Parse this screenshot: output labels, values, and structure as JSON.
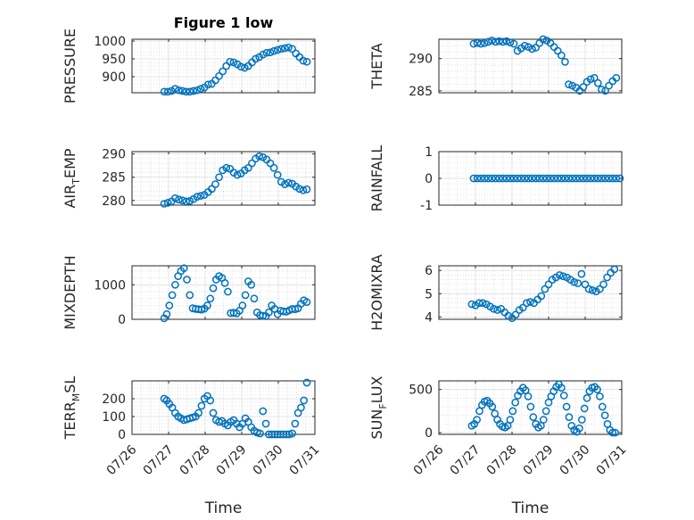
{
  "chart_data": [
    {
      "type": "scatter",
      "title": "Figure 1 low",
      "ylabel": "PRESSURE",
      "xlabel": "",
      "ylim": [
        855,
        1005
      ],
      "yticks": [
        900,
        950,
        1000
      ],
      "x_tick_labels": [],
      "grid": true,
      "marker_color": "#0072bd",
      "series": [
        {
          "x": [
            0.88,
            0.98,
            1.08,
            1.18,
            1.28,
            1.38,
            1.48,
            1.58,
            1.68,
            1.78,
            1.88,
            1.98,
            2.08,
            2.18,
            2.28,
            2.38,
            2.48,
            2.58,
            2.68,
            2.78,
            2.88,
            2.98,
            3.08,
            3.18,
            3.28,
            3.38,
            3.48,
            3.58,
            3.68,
            3.78,
            3.88,
            3.98,
            4.08,
            4.18,
            4.28,
            4.38,
            4.48,
            4.58,
            4.68,
            4.78
          ],
          "y": [
            858,
            858,
            860,
            866,
            862,
            860,
            858,
            858,
            860,
            862,
            866,
            870,
            878,
            880,
            890,
            902,
            915,
            930,
            942,
            940,
            935,
            928,
            925,
            930,
            940,
            950,
            955,
            962,
            967,
            968,
            972,
            975,
            978,
            980,
            982,
            978,
            965,
            955,
            945,
            942
          ]
        }
      ]
    },
    {
      "type": "scatter",
      "title": "",
      "ylabel": "THETA",
      "xlabel": "",
      "ylim": [
        284.7,
        293
      ],
      "yticks": [
        285,
        290
      ],
      "x_tick_labels": [],
      "grid": true,
      "marker_color": "#0072bd",
      "series": [
        {
          "x": [
            0.95,
            1.05,
            1.15,
            1.25,
            1.35,
            1.45,
            1.55,
            1.65,
            1.75,
            1.85,
            1.95,
            2.05,
            2.15,
            2.25,
            2.35,
            2.45,
            2.55,
            2.65,
            2.75,
            2.85,
            2.95,
            3.05,
            3.15,
            3.25,
            3.35,
            3.45,
            3.55,
            3.65,
            3.75,
            3.85,
            3.95,
            4.05,
            4.15,
            4.25,
            4.35,
            4.45,
            4.55,
            4.65,
            4.75,
            4.85
          ],
          "y": [
            292.3,
            292.4,
            292.3,
            292.4,
            292.6,
            292.8,
            292.6,
            292.7,
            292.6,
            292.7,
            292.5,
            292.3,
            291.2,
            291.6,
            292.0,
            291.8,
            291.5,
            291.7,
            292.4,
            293.0,
            292.8,
            292.4,
            291.8,
            291.2,
            290.5,
            289.5,
            286.0,
            285.8,
            285.5,
            285.0,
            285.6,
            286.4,
            286.8,
            287.0,
            286.2,
            285.2,
            285.0,
            285.8,
            286.5,
            287.0
          ]
        }
      ]
    },
    {
      "type": "scatter",
      "title": "",
      "ylabel": "AIR_TEMP",
      "xlabel": "",
      "ylim": [
        279,
        290.5
      ],
      "yticks": [
        280,
        285,
        290
      ],
      "x_tick_labels": [],
      "grid": true,
      "marker_color": "#0072bd",
      "series": [
        {
          "x": [
            0.88,
            0.98,
            1.08,
            1.18,
            1.28,
            1.38,
            1.48,
            1.58,
            1.68,
            1.78,
            1.88,
            1.98,
            2.08,
            2.18,
            2.28,
            2.38,
            2.48,
            2.58,
            2.68,
            2.78,
            2.88,
            2.98,
            3.08,
            3.18,
            3.28,
            3.38,
            3.48,
            3.58,
            3.68,
            3.78,
            3.88,
            3.98,
            4.08,
            4.18,
            4.28,
            4.38,
            4.48,
            4.58,
            4.68,
            4.78
          ],
          "y": [
            279.3,
            279.5,
            279.8,
            280.5,
            280.2,
            280.0,
            279.8,
            279.9,
            280.3,
            280.8,
            281.0,
            281.2,
            281.8,
            282.5,
            283.5,
            285.0,
            286.5,
            287.0,
            286.8,
            286.0,
            285.5,
            285.8,
            286.5,
            287.0,
            288.0,
            289.0,
            289.5,
            289.3,
            288.8,
            288.0,
            287.0,
            285.5,
            284.0,
            283.5,
            283.8,
            283.6,
            283.0,
            282.5,
            282.2,
            282.4
          ]
        }
      ]
    },
    {
      "type": "scatter",
      "title": "",
      "ylabel": "RAINFALL",
      "xlabel": "",
      "ylim": [
        -1,
        1
      ],
      "yticks": [
        -1,
        0,
        1
      ],
      "x_tick_labels": [],
      "grid": true,
      "marker_color": "#0072bd",
      "series": [
        {
          "x": [
            0.95,
            1.05,
            1.15,
            1.25,
            1.35,
            1.45,
            1.55,
            1.65,
            1.75,
            1.85,
            1.95,
            2.05,
            2.15,
            2.25,
            2.35,
            2.45,
            2.55,
            2.65,
            2.75,
            2.85,
            2.95,
            3.05,
            3.15,
            3.25,
            3.35,
            3.45,
            3.55,
            3.65,
            3.75,
            3.85,
            3.95,
            4.05,
            4.15,
            4.25,
            4.35,
            4.45,
            4.55,
            4.65,
            4.75,
            4.85,
            4.95
          ],
          "y": [
            0,
            0,
            0,
            0,
            0,
            0,
            0,
            0,
            0,
            0,
            0,
            0,
            0,
            0,
            0,
            0,
            0,
            0,
            0,
            0,
            0,
            0,
            0,
            0,
            0,
            0,
            0,
            0,
            0,
            0,
            0,
            0,
            0,
            0,
            0,
            0,
            0,
            0,
            0,
            0,
            0
          ]
        }
      ]
    },
    {
      "type": "scatter",
      "title": "",
      "ylabel": "MIXDEPTH",
      "xlabel": "",
      "ylim": [
        0,
        1550
      ],
      "yticks": [
        0,
        1000
      ],
      "x_tick_labels": [],
      "grid": true,
      "marker_color": "#0072bd",
      "series": [
        {
          "x": [
            0.88,
            0.95,
            1.02,
            1.1,
            1.18,
            1.26,
            1.34,
            1.42,
            1.5,
            1.58,
            1.66,
            1.74,
            1.82,
            1.9,
            1.98,
            2.06,
            2.14,
            2.22,
            2.3,
            2.38,
            2.46,
            2.54,
            2.62,
            2.7,
            2.78,
            2.86,
            2.94,
            3.02,
            3.1,
            3.18,
            3.26,
            3.34,
            3.42,
            3.5,
            3.58,
            3.66,
            3.74,
            3.82,
            3.9,
            3.98,
            4.06,
            4.14,
            4.22,
            4.3,
            4.38,
            4.46,
            4.54,
            4.62,
            4.7,
            4.78
          ],
          "y": [
            30,
            150,
            400,
            700,
            1000,
            1250,
            1400,
            1480,
            1150,
            700,
            320,
            300,
            290,
            280,
            310,
            400,
            600,
            900,
            1150,
            1250,
            1200,
            1050,
            800,
            180,
            190,
            170,
            250,
            400,
            700,
            1100,
            1000,
            600,
            200,
            120,
            100,
            90,
            200,
            400,
            300,
            150,
            250,
            230,
            220,
            260,
            300,
            290,
            320,
            450,
            550,
            500
          ]
        }
      ]
    },
    {
      "type": "scatter",
      "title": "",
      "ylabel": "H2OMIXRA",
      "xlabel": "",
      "ylim": [
        3.9,
        6.2
      ],
      "yticks": [
        4,
        5,
        6
      ],
      "x_tick_labels": [],
      "grid": true,
      "marker_color": "#0072bd",
      "series": [
        {
          "x": [
            0.9,
            1.0,
            1.1,
            1.2,
            1.3,
            1.4,
            1.5,
            1.6,
            1.7,
            1.8,
            1.9,
            2.0,
            2.1,
            2.2,
            2.3,
            2.4,
            2.5,
            2.6,
            2.7,
            2.8,
            2.9,
            3.0,
            3.1,
            3.2,
            3.3,
            3.4,
            3.5,
            3.6,
            3.7,
            3.8,
            3.9,
            4.0,
            4.1,
            4.2,
            4.3,
            4.4,
            4.5,
            4.6,
            4.7,
            4.8
          ],
          "y": [
            4.55,
            4.5,
            4.6,
            4.6,
            4.55,
            4.45,
            4.35,
            4.3,
            4.35,
            4.2,
            4.05,
            3.95,
            4.1,
            4.3,
            4.4,
            4.6,
            4.65,
            4.6,
            4.75,
            4.9,
            5.2,
            5.4,
            5.6,
            5.7,
            5.8,
            5.75,
            5.7,
            5.6,
            5.5,
            5.45,
            5.85,
            5.4,
            5.2,
            5.15,
            5.1,
            5.2,
            5.4,
            5.7,
            5.9,
            6.05
          ]
        }
      ]
    },
    {
      "type": "scatter",
      "title": "",
      "ylabel": "TERR_MSL",
      "xlabel": "Time",
      "ylim": [
        0,
        300
      ],
      "yticks": [
        0,
        100,
        200
      ],
      "x_tick_labels": [
        "07/26",
        "07/27",
        "07/28",
        "07/29",
        "07/30",
        "07/31"
      ],
      "grid": true,
      "marker_color": "#0072bd",
      "series": [
        {
          "x": [
            0.88,
            0.95,
            1.02,
            1.1,
            1.18,
            1.26,
            1.34,
            1.42,
            1.5,
            1.58,
            1.66,
            1.74,
            1.82,
            1.9,
            1.98,
            2.06,
            2.14,
            2.22,
            2.3,
            2.38,
            2.46,
            2.54,
            2.62,
            2.7,
            2.78,
            2.86,
            2.94,
            3.02,
            3.1,
            3.18,
            3.26,
            3.34,
            3.42,
            3.5,
            3.58,
            3.66,
            3.74,
            3.82,
            3.9,
            3.98,
            4.06,
            4.14,
            4.22,
            4.3,
            4.38,
            4.46,
            4.54,
            4.62,
            4.7,
            4.78
          ],
          "y": [
            200,
            190,
            170,
            150,
            120,
            100,
            90,
            80,
            85,
            90,
            95,
            100,
            120,
            160,
            200,
            215,
            190,
            120,
            80,
            70,
            75,
            60,
            50,
            70,
            80,
            60,
            40,
            60,
            90,
            70,
            40,
            20,
            10,
            5,
            130,
            60,
            0,
            0,
            0,
            0,
            0,
            0,
            0,
            0,
            5,
            60,
            120,
            150,
            190,
            290
          ]
        }
      ]
    },
    {
      "type": "scatter",
      "title": "",
      "ylabel": "SUN_FLUX",
      "xlabel": "Time",
      "ylim": [
        -20,
        600
      ],
      "yticks": [
        0,
        500
      ],
      "x_tick_labels": [
        "07/26",
        "07/27",
        "07/28",
        "07/29",
        "07/30",
        "07/31"
      ],
      "grid": true,
      "marker_color": "#0072bd",
      "series": [
        {
          "x": [
            0.9,
            0.97,
            1.04,
            1.11,
            1.18,
            1.25,
            1.32,
            1.39,
            1.46,
            1.53,
            1.6,
            1.67,
            1.74,
            1.81,
            1.88,
            1.95,
            2.02,
            2.09,
            2.16,
            2.23,
            2.3,
            2.37,
            2.44,
            2.51,
            2.58,
            2.65,
            2.72,
            2.79,
            2.86,
            2.93,
            3.0,
            3.07,
            3.14,
            3.21,
            3.28,
            3.35,
            3.42,
            3.49,
            3.56,
            3.63,
            3.7,
            3.77,
            3.84,
            3.91,
            3.98,
            4.05,
            4.12,
            4.19,
            4.26,
            4.33,
            4.4,
            4.47,
            4.54,
            4.61,
            4.68,
            4.75,
            4.82
          ],
          "y": [
            80,
            100,
            150,
            250,
            320,
            360,
            370,
            340,
            300,
            220,
            150,
            100,
            70,
            60,
            80,
            150,
            250,
            350,
            430,
            480,
            520,
            490,
            420,
            300,
            180,
            100,
            60,
            80,
            150,
            250,
            350,
            420,
            480,
            530,
            560,
            520,
            430,
            300,
            180,
            80,
            30,
            10,
            50,
            150,
            280,
            400,
            480,
            520,
            530,
            500,
            420,
            300,
            200,
            100,
            30,
            0,
            0
          ]
        }
      ]
    }
  ]
}
